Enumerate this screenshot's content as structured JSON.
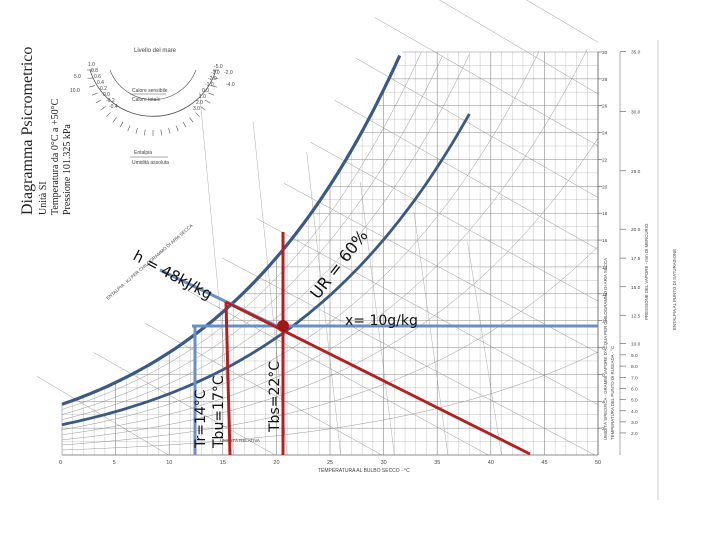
{
  "title_block": {
    "title": "Diagramma Psicrometrico",
    "line1": "Unità SI",
    "line2": "Temperatura da 0°C a +50°C",
    "line3": "Pressione 101.325 kPa"
  },
  "protractor": {
    "header": "Livello del mare",
    "ratio_label_top": "Calore sensibile",
    "ratio_label_bottom": "Calore totale",
    "enthalpy_label": "Entalpia",
    "moisture_label": "Umidità assoluta",
    "left_ticks": [
      "1.0",
      "0.8",
      "0.6",
      "0.4",
      "0.2",
      "0.0",
      "-0.2",
      "-0.4"
    ],
    "right_ticks": [
      "-5.0",
      "-3.0",
      "-2.0",
      "-1.0",
      "0.0",
      "1.0",
      "2.0",
      "3.0"
    ],
    "scale_left": [
      "1.0",
      "2.0",
      "5.0",
      "10.0",
      "4.0"
    ],
    "scale_right": [
      "1.0",
      "4.0",
      "-2.0",
      "-4.0"
    ]
  },
  "axes": {
    "x_label": "TEMPERATURA AL BULBO SECCO - °C",
    "x_ticks": [
      "0",
      "5",
      "10",
      "15",
      "20",
      "25",
      "30",
      "35",
      "40",
      "45",
      "50"
    ],
    "right_label_1": "UMIDITÀ SPECIFICA - GRAMMI VAPORE D'ACQUA PER CHILOGRAMMO DI ARIA SECCA",
    "right_label_2": "TEMPERATURA DEL PUNTO DI RUGIADA - °C",
    "right_label_3": "PRESSIONE DEL VAPORE - mm DI MERCURIO",
    "right_label_4": "ENTALPIA AL PUNTO DI SATURAZIONE",
    "w_ticks": [
      "30",
      "28",
      "26",
      "24",
      "22",
      "20",
      "18",
      "16",
      "14",
      "12",
      "10",
      "8",
      "6",
      "4",
      "2"
    ],
    "pressure_ticks": [
      "45.0",
      "40.0",
      "35.0",
      "30.0",
      "25.0",
      "20.0",
      "17.5",
      "15.0",
      "12.5",
      "10.0",
      "9.0",
      "8.0",
      "7.0",
      "6.0",
      "5.0",
      "4.0",
      "3.0",
      "2.0"
    ],
    "enthalpy_scale_label": "ENTALPIA - KJ PER CHILOGRAMMO DI ARIA SECCA",
    "rh_curve_label": "UMIDITÀ RELATIVA"
  },
  "annotations": {
    "enthalpy": "h = 48kJ/kg",
    "rh": "UR = 60%",
    "humidity": "x= 10g/kg",
    "dew_point": "Tr=14°C",
    "wet_bulb": "Tbu=17°C",
    "dry_bulb": "Tbs=22°C"
  },
  "state_point": {
    "tdb": 22,
    "twb": 17,
    "tdp": 14,
    "rh": 60,
    "x_gkg": 10,
    "h_kjkg": 48
  },
  "colors": {
    "grid": "#8a8a8a",
    "saturation": "#3a5a86",
    "blue_lines": "#6b8fc3",
    "red_lines": "#b51f1f",
    "point": "#a31616",
    "annotation": "#111111"
  }
}
